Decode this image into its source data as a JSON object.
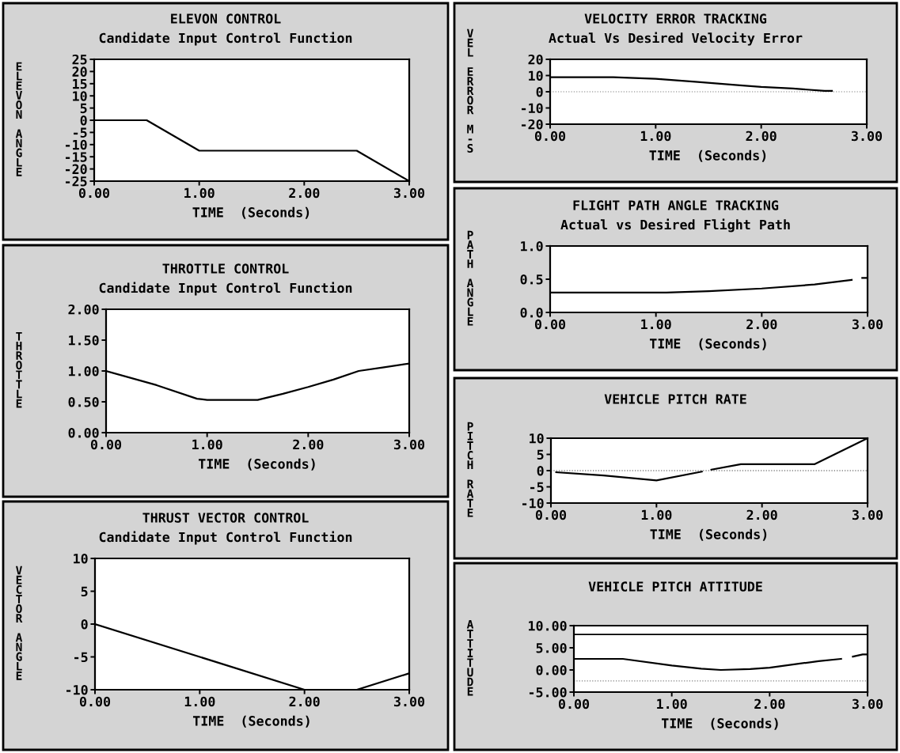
{
  "chart_data": [
    {
      "type": "line",
      "title": "ELEVON CONTROL",
      "subtitle": "Candidate Input Control Function",
      "xlabel": "TIME  (Seconds)",
      "ylabel": "ELEVON ANGLE",
      "xlim": [
        0,
        3
      ],
      "ylim": [
        -25,
        25
      ],
      "xticks": [
        {
          "value": 0,
          "label": "0.00"
        },
        {
          "value": 1,
          "label": "1.00"
        },
        {
          "value": 2,
          "label": "2.00"
        },
        {
          "value": 3,
          "label": "3.00"
        }
      ],
      "yticks": [
        -25,
        -20,
        -15,
        -10,
        -5,
        0,
        5,
        10,
        15,
        20,
        25
      ],
      "grid": false,
      "series": [
        {
          "color": "#000000",
          "x": [
            0,
            0.5,
            1.0,
            2.5,
            3.0
          ],
          "values": [
            0,
            0,
            -12.5,
            -12.5,
            -25
          ]
        }
      ]
    },
    {
      "type": "line",
      "title": "THROTTLE CONTROL",
      "subtitle": "Candidate Input Control Function",
      "xlabel": "TIME  (Seconds)",
      "ylabel": "THROTTLE",
      "xlim": [
        0,
        3
      ],
      "ylim": [
        0,
        2
      ],
      "xticks": [
        {
          "value": 0,
          "label": "0.00"
        },
        {
          "value": 1,
          "label": "1.00"
        },
        {
          "value": 2,
          "label": "2.00"
        },
        {
          "value": 3,
          "label": "3.00"
        }
      ],
      "yticks": [
        {
          "value": 0,
          "label": "0.00"
        },
        {
          "value": 0.5,
          "label": "0.50"
        },
        {
          "value": 1,
          "label": "1.00"
        },
        {
          "value": 1.5,
          "label": "1.50"
        },
        {
          "value": 2,
          "label": "2.00"
        }
      ],
      "grid": false,
      "series": [
        {
          "color": "#000000",
          "x": [
            0,
            0.5,
            0.9,
            1.0,
            1.5,
            1.75,
            2.0,
            2.25,
            2.5,
            2.75,
            3.0
          ],
          "values": [
            1.0,
            0.77,
            0.55,
            0.53,
            0.53,
            0.63,
            0.74,
            0.86,
            1.0,
            1.06,
            1.12
          ]
        }
      ]
    },
    {
      "type": "line",
      "title": "THRUST VECTOR CONTROL",
      "subtitle": "Candidate Input Control Function",
      "xlabel": "TIME  (Seconds)",
      "ylabel": "VECTOR ANGLE",
      "xlim": [
        0,
        3
      ],
      "ylim": [
        -10,
        10
      ],
      "xticks": [
        {
          "value": 0,
          "label": "0.00"
        },
        {
          "value": 1,
          "label": "1.00"
        },
        {
          "value": 2,
          "label": "2.00"
        },
        {
          "value": 3,
          "label": "3.00"
        }
      ],
      "yticks": [
        -10,
        -5,
        0,
        5,
        10
      ],
      "grid": false,
      "series": [
        {
          "color": "#000000",
          "x": [
            0,
            2.0,
            2.5,
            3.0
          ],
          "values": [
            0,
            -10,
            -10,
            -7.5
          ]
        }
      ]
    },
    {
      "type": "line",
      "title": "VELOCITY ERROR TRACKING",
      "subtitle": "Actual Vs Desired Velocity Error",
      "xlabel": "TIME  (Seconds)",
      "ylabel": "VEL ERROR M-S",
      "xlim": [
        0,
        3
      ],
      "ylim": [
        -20,
        20
      ],
      "xticks": [
        {
          "value": 0,
          "label": "0.00"
        },
        {
          "value": 1,
          "label": "1.00"
        },
        {
          "value": 2,
          "label": "2.00"
        },
        {
          "value": 3,
          "label": "3.00"
        }
      ],
      "yticks": [
        -20,
        -10,
        0,
        10,
        20
      ],
      "grid": false,
      "ref_lines": [
        {
          "axis": "y",
          "value": 0,
          "color": "#808080",
          "line_style": "dotted"
        }
      ],
      "series": [
        {
          "color": "#000000",
          "x": [
            0,
            0.6,
            1.0,
            1.4,
            1.8,
            2.0,
            2.3,
            2.6,
            2.67
          ],
          "values": [
            9,
            9,
            8,
            6,
            4,
            3,
            2,
            0.5,
            0.5
          ]
        }
      ]
    },
    {
      "type": "line",
      "title": "FLIGHT PATH ANGLE TRACKING",
      "subtitle": "Actual vs Desired Flight Path",
      "xlabel": "TIME  (Seconds)",
      "ylabel": "PATH ANGLE",
      "xlim": [
        0,
        3
      ],
      "ylim": [
        0,
        1
      ],
      "xticks": [
        {
          "value": 0,
          "label": "0.00"
        },
        {
          "value": 1,
          "label": "1.00"
        },
        {
          "value": 2,
          "label": "2.00"
        },
        {
          "value": 3,
          "label": "3.00"
        }
      ],
      "yticks": [
        {
          "value": 0,
          "label": "0.0"
        },
        {
          "value": 0.5,
          "label": "0.5"
        },
        {
          "value": 1,
          "label": "1.0"
        }
      ],
      "grid": false,
      "series": [
        {
          "color": "#000000",
          "x": [
            0,
            1.1,
            1.5,
            2.0,
            2.5,
            2.85,
            2.9,
            2.95,
            3.0
          ],
          "values": [
            0.3,
            0.3,
            0.32,
            0.36,
            0.42,
            0.49,
            null,
            0.52,
            0.52
          ]
        }
      ]
    },
    {
      "type": "line",
      "title": "VEHICLE PITCH RATE",
      "xlabel": "TIME  (Seconds)",
      "ylabel": "PITCH RATE",
      "xlim": [
        0,
        3
      ],
      "ylim": [
        -10,
        10
      ],
      "xticks": [
        {
          "value": 0,
          "label": "0.00"
        },
        {
          "value": 1,
          "label": "1.00"
        },
        {
          "value": 2,
          "label": "2.00"
        },
        {
          "value": 3,
          "label": "3.00"
        }
      ],
      "yticks": [
        -10,
        -5,
        0,
        5,
        10
      ],
      "grid": false,
      "ref_lines": [
        {
          "axis": "y",
          "value": 0,
          "color": "#808080",
          "line_style": "dotted"
        }
      ],
      "series": [
        {
          "color": "#000000",
          "x": [
            0.05,
            0.5,
            1.0,
            1.43,
            1.47,
            1.52,
            1.8,
            2.5,
            3.0
          ],
          "values": [
            -0.5,
            -1.5,
            -3,
            -0.3,
            null,
            0.3,
            2,
            2,
            10
          ]
        }
      ]
    },
    {
      "type": "line",
      "title": "VEHICLE PITCH ATTITUDE",
      "xlabel": "TIME  (Seconds)",
      "ylabel": "ATTITUDE",
      "xlim": [
        0,
        3
      ],
      "ylim": [
        -5,
        10
      ],
      "xticks": [
        {
          "value": 0,
          "label": "0.00"
        },
        {
          "value": 1,
          "label": "1.00"
        },
        {
          "value": 2,
          "label": "2.00"
        },
        {
          "value": 3,
          "label": "3.00"
        }
      ],
      "yticks": [
        {
          "value": -5,
          "label": "-5.00"
        },
        {
          "value": 0,
          "label": "0.00"
        },
        {
          "value": 5,
          "label": "5.00"
        },
        {
          "value": 10,
          "label": "10.00"
        }
      ],
      "grid": false,
      "ref_lines": [
        {
          "axis": "y",
          "value": 8,
          "color": "#000000",
          "line_style": "solid"
        },
        {
          "axis": "y",
          "value": -2.5,
          "color": "#808080",
          "line_style": "dotted"
        }
      ],
      "series": [
        {
          "color": "#000000",
          "x": [
            0,
            0.5,
            1.0,
            1.3,
            1.5,
            1.8,
            2.0,
            2.5,
            2.73,
            2.8,
            2.85,
            2.95,
            3.0
          ],
          "values": [
            2.5,
            2.5,
            1.0,
            0.3,
            0,
            0.2,
            0.5,
            2.0,
            2.5,
            null,
            3.0,
            3.5,
            3.5
          ]
        }
      ]
    }
  ]
}
